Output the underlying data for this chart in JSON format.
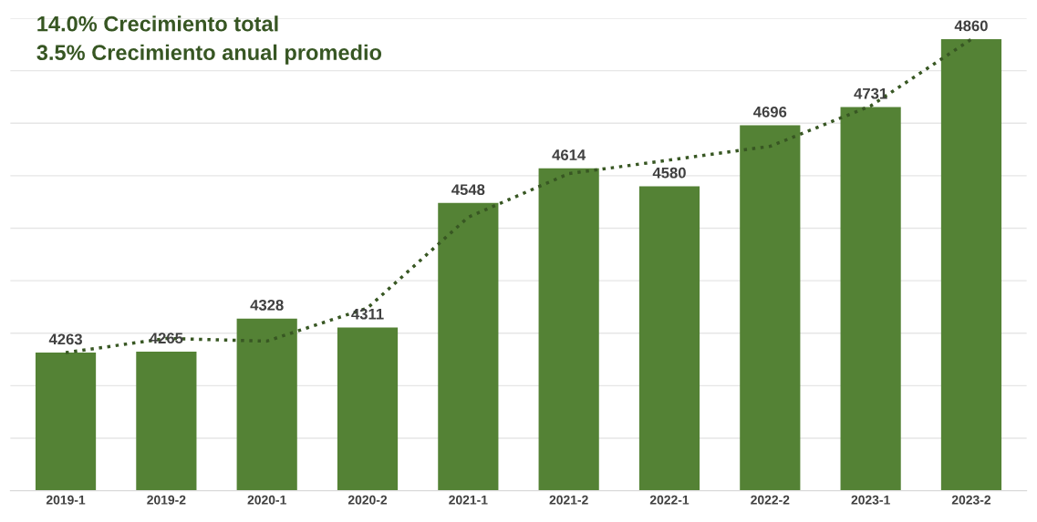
{
  "chart_data": {
    "type": "bar",
    "annotations": [
      "14.0% Crecimiento total",
      "3.5% Crecimiento anual promedio"
    ],
    "categories": [
      "2019-1",
      "2019-2",
      "2020-1",
      "2020-2",
      "2021-1",
      "2021-2",
      "2022-1",
      "2022-2",
      "2023-1",
      "2023-2"
    ],
    "series": [
      {
        "color": "#548235",
        "values": [
          4263,
          4265,
          4328,
          4311,
          4548,
          4614,
          4580,
          4696,
          4731,
          4860
        ],
        "value_labels": [
          "4263",
          "4265",
          "4328",
          "4311",
          "4548",
          "4614",
          "4580",
          "4696",
          "4731",
          "4860"
        ]
      },
      {
        "type": "line",
        "color": "#385723",
        "line_style": "dotted",
        "values": [
          4263,
          4290,
          4285,
          4348,
          4521,
          4604,
          4630,
          4656,
          4733,
          4860
        ]
      }
    ],
    "ylim": [
      4000,
      4900
    ],
    "yticks": [
      {
        "value": 4100,
        "label": null
      },
      {
        "value": 4200,
        "label": null
      },
      {
        "value": 4300,
        "label": null
      },
      {
        "value": 4400,
        "label": null
      },
      {
        "value": 4500,
        "label": null
      },
      {
        "value": 4600,
        "label": null
      },
      {
        "value": 4700,
        "label": null
      },
      {
        "value": 4800,
        "label": null
      },
      {
        "value": 4900,
        "label": null
      }
    ],
    "grid": "y",
    "tick_labels": "x"
  }
}
